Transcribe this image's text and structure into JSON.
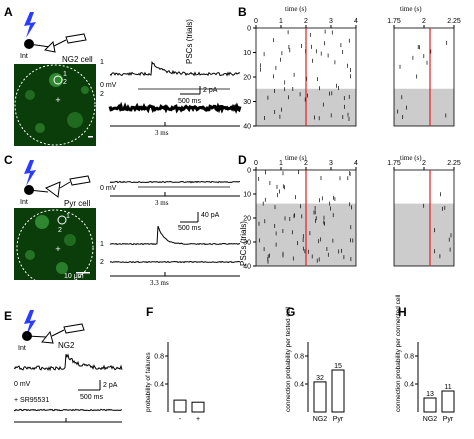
{
  "panels": {
    "A": {
      "letter": "A",
      "cell_label": "NG2 cell",
      "int_label": "Int",
      "micro_marks": [
        "1",
        "2"
      ],
      "trace_labels": [
        "1",
        "2"
      ],
      "zero_mv": "0 mV",
      "scalebar_pa": "2 pA",
      "scalebar_ms": "500 ms",
      "time_label": "3 ms"
    },
    "B": {
      "letter": "B",
      "time_label_left": "time (s)",
      "time_label_right": "time (s)",
      "ylabel": "PSCs (trials)",
      "x_ticks_left": [
        "0",
        "1",
        "2",
        "3",
        "4"
      ],
      "x_ticks_right": [
        "1.75",
        "2",
        "2.25"
      ],
      "y_ticks": [
        "0",
        "10",
        "20",
        "30",
        "40"
      ]
    },
    "C": {
      "letter": "C",
      "cell_label": "Pyr cell",
      "int_label": "Int",
      "micro_marks": [
        "1",
        "2"
      ],
      "trace_labels": [
        "1",
        "2"
      ],
      "zero_mv": "0 mV",
      "time_label_top": "3 ms",
      "scalebar_pa": "40 pA",
      "scalebar_ms": "500 ms",
      "time_label_bottom": "3.3 ms",
      "micro_scale": "10 μm"
    },
    "D": {
      "letter": "D",
      "time_label_left": "time (s)",
      "time_label_right": "time (s)",
      "ylabel": "PSCs (trials)",
      "x_ticks_left": [
        "0",
        "1",
        "2",
        "3",
        "4"
      ],
      "x_ticks_right": [
        "1.75",
        "2",
        "2.25"
      ],
      "y_ticks": [
        "0",
        "10",
        "20",
        "30",
        "40"
      ]
    },
    "E": {
      "letter": "E",
      "cell_label": "NG2",
      "int_label": "Int",
      "zero_mv": "0 mV",
      "drug_label": "+ SR95531",
      "scalebar_pa": "2 pA",
      "scalebar_ms": "500 ms"
    }
  },
  "chart_data": [
    {
      "panel": "F",
      "type": "bar",
      "title": "",
      "ylabel": "probability of failures",
      "xlabel": "",
      "categories": [
        "-",
        "+"
      ],
      "values": [
        0.17,
        0.14
      ],
      "yticks": [
        0.4,
        0.8
      ],
      "ylim": [
        0,
        1.0
      ],
      "bar_labels": []
    },
    {
      "panel": "G",
      "type": "bar",
      "title": "",
      "ylabel": "connection probability per tested cell",
      "xlabel": "",
      "categories": [
        "NG2",
        "Pyr"
      ],
      "values": [
        0.43,
        0.6
      ],
      "yticks": [
        0.4,
        0.8
      ],
      "ylim": [
        0,
        1.0
      ],
      "bar_labels": [
        "32",
        "15"
      ]
    },
    {
      "panel": "H",
      "type": "bar",
      "title": "",
      "ylabel": "connection probability per connected cell",
      "xlabel": "",
      "categories": [
        "NG2",
        "Pyr"
      ],
      "values": [
        0.2,
        0.3
      ],
      "yticks": [
        0.4,
        0.8
      ],
      "ylim": [
        0,
        1.0
      ],
      "bar_labels": [
        "13",
        "11"
      ]
    }
  ],
  "colors": {
    "stim_line": "#e02020",
    "shade": "#cccccc",
    "lightning": "#2b3cff",
    "micro_bg": "#0b3d0b",
    "micro_spot": "#3fa83f"
  }
}
